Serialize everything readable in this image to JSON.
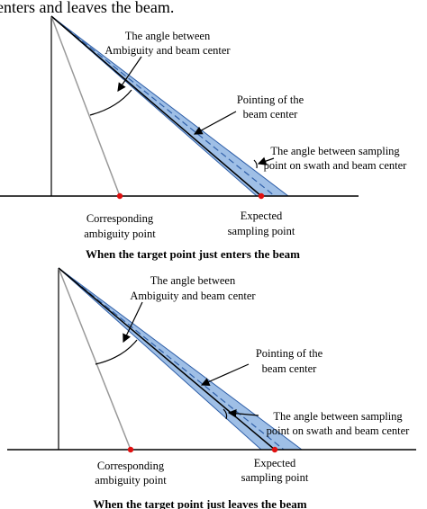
{
  "header_fragment": "enters and leaves the beam.",
  "panels": [
    {
      "angle_ambiguity": [
        "The angle between",
        "Ambiguity and beam center"
      ],
      "pointing": [
        "Pointing of the",
        "beam center"
      ],
      "angle_sampling": [
        "The angle between sampling",
        "point  on swath and beam center"
      ],
      "ambiguity_point": [
        "Corresponding",
        "ambiguity point"
      ],
      "sampling_point": [
        "Expected",
        "sampling point"
      ],
      "caption": "When the target point just enters the beam"
    },
    {
      "angle_ambiguity": [
        "The angle between",
        "Ambiguity and beam center"
      ],
      "pointing": [
        "Pointing of the",
        "beam center"
      ],
      "angle_sampling": [
        "The angle between sampling",
        "point  on swath and beam center"
      ],
      "ambiguity_point": [
        "Corresponding",
        "ambiguity point"
      ],
      "sampling_point": [
        "Expected",
        "sampling point"
      ],
      "caption": "When the target point just leaves the beam"
    }
  ]
}
